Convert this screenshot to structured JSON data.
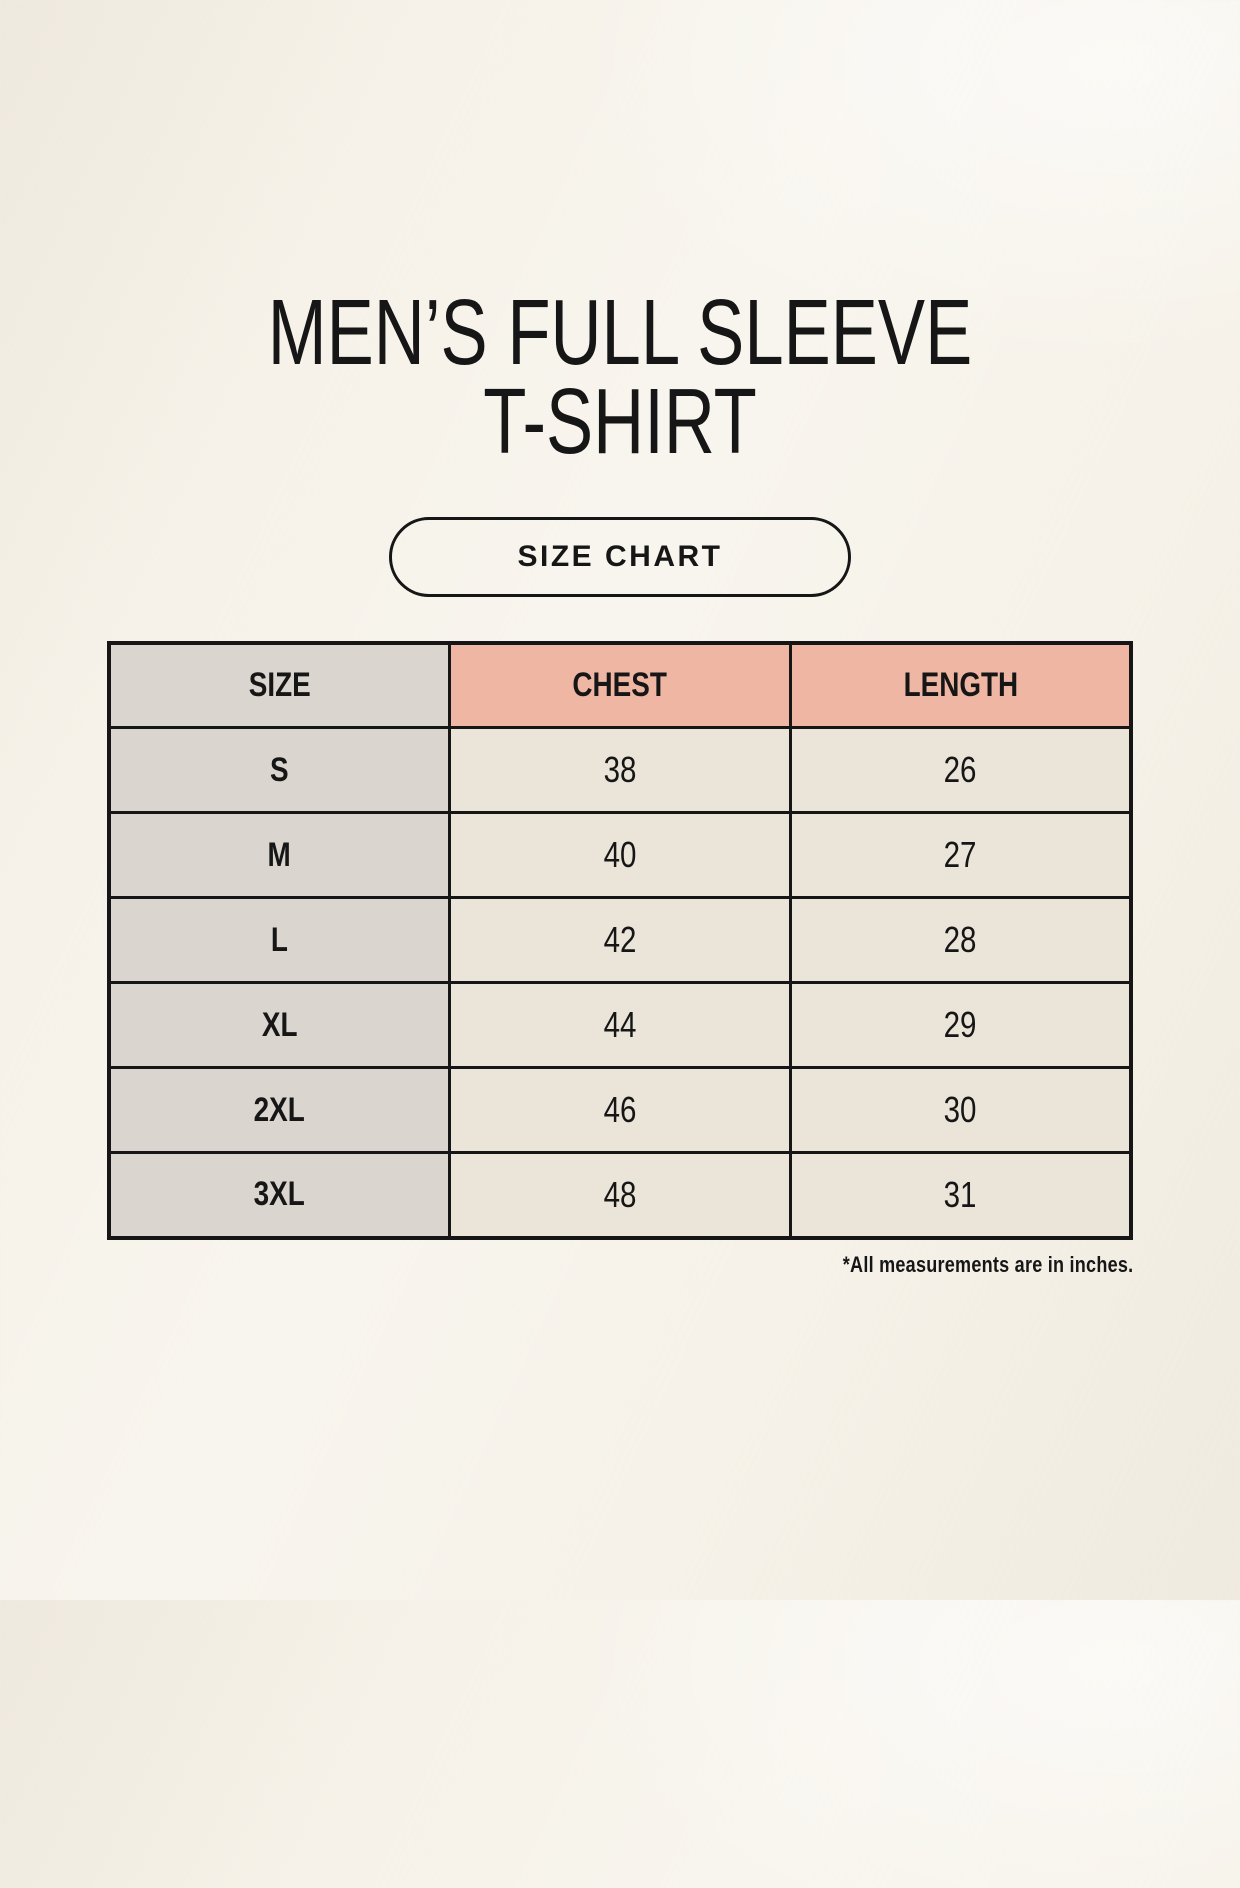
{
  "header": {
    "title_line1": "MEN’S FULL SLEEVE",
    "title_line2": "T-SHIRT",
    "size_chart_button_label": "SIZE CHART"
  },
  "footnote": "*All measurements are in inches.",
  "colors": {
    "background": "#f6f2e9",
    "size_column_bg": "#dbd5cf",
    "measurement_header_bg": "#f0b6a4",
    "value_cell_bg": "#eae4d9",
    "border": "#161616",
    "text": "#161616"
  },
  "chart_data": {
    "type": "table",
    "title": "MEN’S FULL SLEEVE T-SHIRT SIZE CHART",
    "columns": [
      "SIZE",
      "CHEST",
      "LENGTH"
    ],
    "units": "inches",
    "rows": [
      {
        "size": "S",
        "chest": "38",
        "length": "26"
      },
      {
        "size": "M",
        "chest": "40",
        "length": "27"
      },
      {
        "size": "L",
        "chest": "42",
        "length": "28"
      },
      {
        "size": "XL",
        "chest": "44",
        "length": "29"
      },
      {
        "size": "2XL",
        "chest": "46",
        "length": "30"
      },
      {
        "size": "3XL",
        "chest": "48",
        "length": "31"
      }
    ]
  }
}
